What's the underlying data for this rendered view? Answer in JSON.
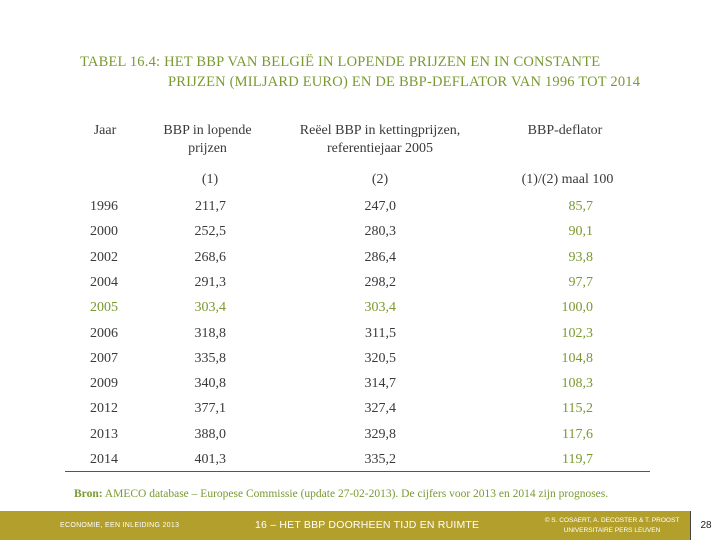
{
  "title": {
    "line1": "TABEL 16.4:  HET BBP VAN BELGIË IN LOPENDE PRIJZEN EN IN CONSTANTE",
    "line2": "PRIJZEN (MILJARD EURO) EN DE BBP-DEFLATOR VAN 1996 TOT 2014"
  },
  "table": {
    "headers": {
      "year": "Jaar",
      "col1_line1": "BBP in lopende",
      "col1_line2": "prijzen",
      "col2_line1": "Reëel BBP in kettingprijzen,",
      "col2_line2": "referentiejaar 2005",
      "col3": "BBP-deflator"
    },
    "subheaders": {
      "col1": "(1)",
      "col2": "(2)",
      "col3": "(1)/(2) maal 100"
    },
    "rows": [
      {
        "year": "1996",
        "col1": "211,7",
        "col2": "247,0",
        "col3": "85,7"
      },
      {
        "year": "2000",
        "col1": "252,5",
        "col2": "280,3",
        "col3": "90,1"
      },
      {
        "year": "2002",
        "col1": "268,6",
        "col2": "286,4",
        "col3": "93,8"
      },
      {
        "year": "2004",
        "col1": "291,3",
        "col2": "298,2",
        "col3": "97,7"
      },
      {
        "year": "2005",
        "col1": "303,4",
        "col2": "303,4",
        "col3": "100,0"
      },
      {
        "year": "2006",
        "col1": "318,8",
        "col2": "311,5",
        "col3": "102,3"
      },
      {
        "year": "2007",
        "col1": "335,8",
        "col2": "320,5",
        "col3": "104,8"
      },
      {
        "year": "2009",
        "col1": "340,8",
        "col2": "314,7",
        "col3": "108,3"
      },
      {
        "year": "2012",
        "col1": "377,1",
        "col2": "327,4",
        "col3": "115,2"
      },
      {
        "year": "2013",
        "col1": "388,0",
        "col2": "329,8",
        "col3": "117,6"
      },
      {
        "year": "2014",
        "col1": "401,3",
        "col2": "335,2",
        "col3": "119,7"
      }
    ],
    "highlight_year": "2005"
  },
  "source": {
    "label": "Bron:",
    "text": "AMECO database – Europese Commissie (update 27-02-2013). De cijfers voor 2013 en 2014 zijn prognoses."
  },
  "footer": {
    "left": "ECONOMIE, EEN INLEIDING 2013",
    "middle": "16 – HET BBP DOORHEEN TIJD EN RUIMTE",
    "right_line1": "© S. COSAERT, A. DECOSTER & T. PROOST",
    "right_line2": "UNIVERSITAIRE PERS LEUVEN",
    "page": "28"
  },
  "colors": {
    "accent_green": "#7a9a30",
    "footer_bar": "#b3a02c"
  }
}
